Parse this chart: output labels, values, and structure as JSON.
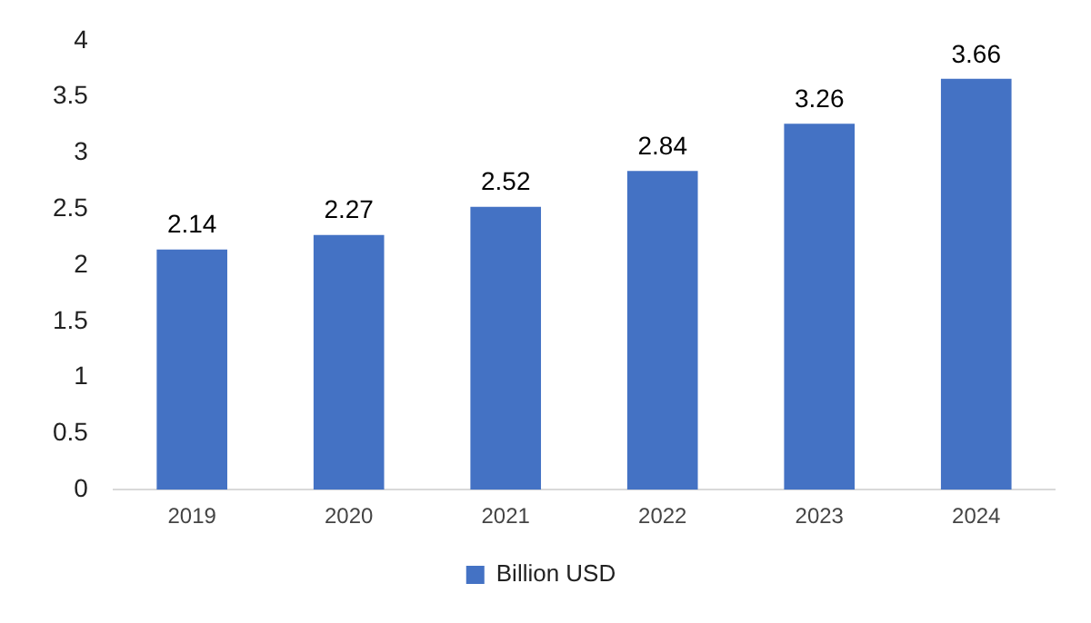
{
  "chart_data": {
    "type": "bar",
    "categories": [
      "2019",
      "2020",
      "2021",
      "2022",
      "2023",
      "2024"
    ],
    "series": [
      {
        "name": "Billion USD",
        "color": "#4472c4",
        "values": [
          2.14,
          2.27,
          2.52,
          2.84,
          3.26,
          3.66
        ]
      }
    ],
    "ylim": [
      0,
      4
    ],
    "yticks": [
      0,
      0.5,
      1,
      1.5,
      2,
      2.5,
      3,
      3.5,
      4
    ],
    "grid": false,
    "legend": "bottom",
    "data_labels": true
  }
}
